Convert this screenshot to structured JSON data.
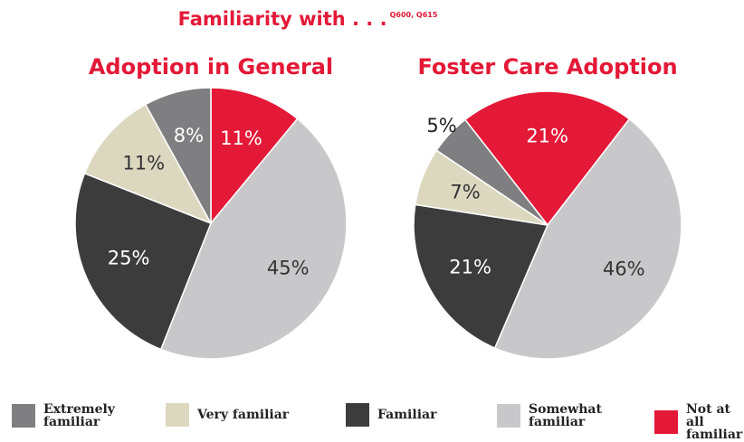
{
  "title": "Familiarity with . . .",
  "note": "Q600, Q615",
  "chart_data": [
    {
      "type": "pie",
      "title": "Adoption in General",
      "categories": [
        "Extremely familiar",
        "Very familiar",
        "Familiar",
        "Somewhat familiar",
        "Not at all familiar"
      ],
      "values": [
        8,
        11,
        25,
        45,
        11
      ],
      "value_labels": [
        "8%",
        "11%",
        "25%",
        "45%",
        "11%"
      ],
      "colors": [
        "#7f7f81",
        "#dcd8c0",
        "#3c3c3c",
        "#c8c8ca",
        "#e31937"
      ]
    },
    {
      "type": "pie",
      "title": "Foster Care Adoption",
      "categories": [
        "Extremely familiar",
        "Very familiar",
        "Familiar",
        "Somewhat familiar",
        "Not at all familiar"
      ],
      "values": [
        5,
        7,
        21,
        46,
        21
      ],
      "value_labels": [
        "5%",
        "7%",
        "21%",
        "46%",
        "21%"
      ],
      "colors": [
        "#7f7f81",
        "#dcd8c0",
        "#3c3c3c",
        "#c8c8ca",
        "#e31937"
      ]
    }
  ]
}
